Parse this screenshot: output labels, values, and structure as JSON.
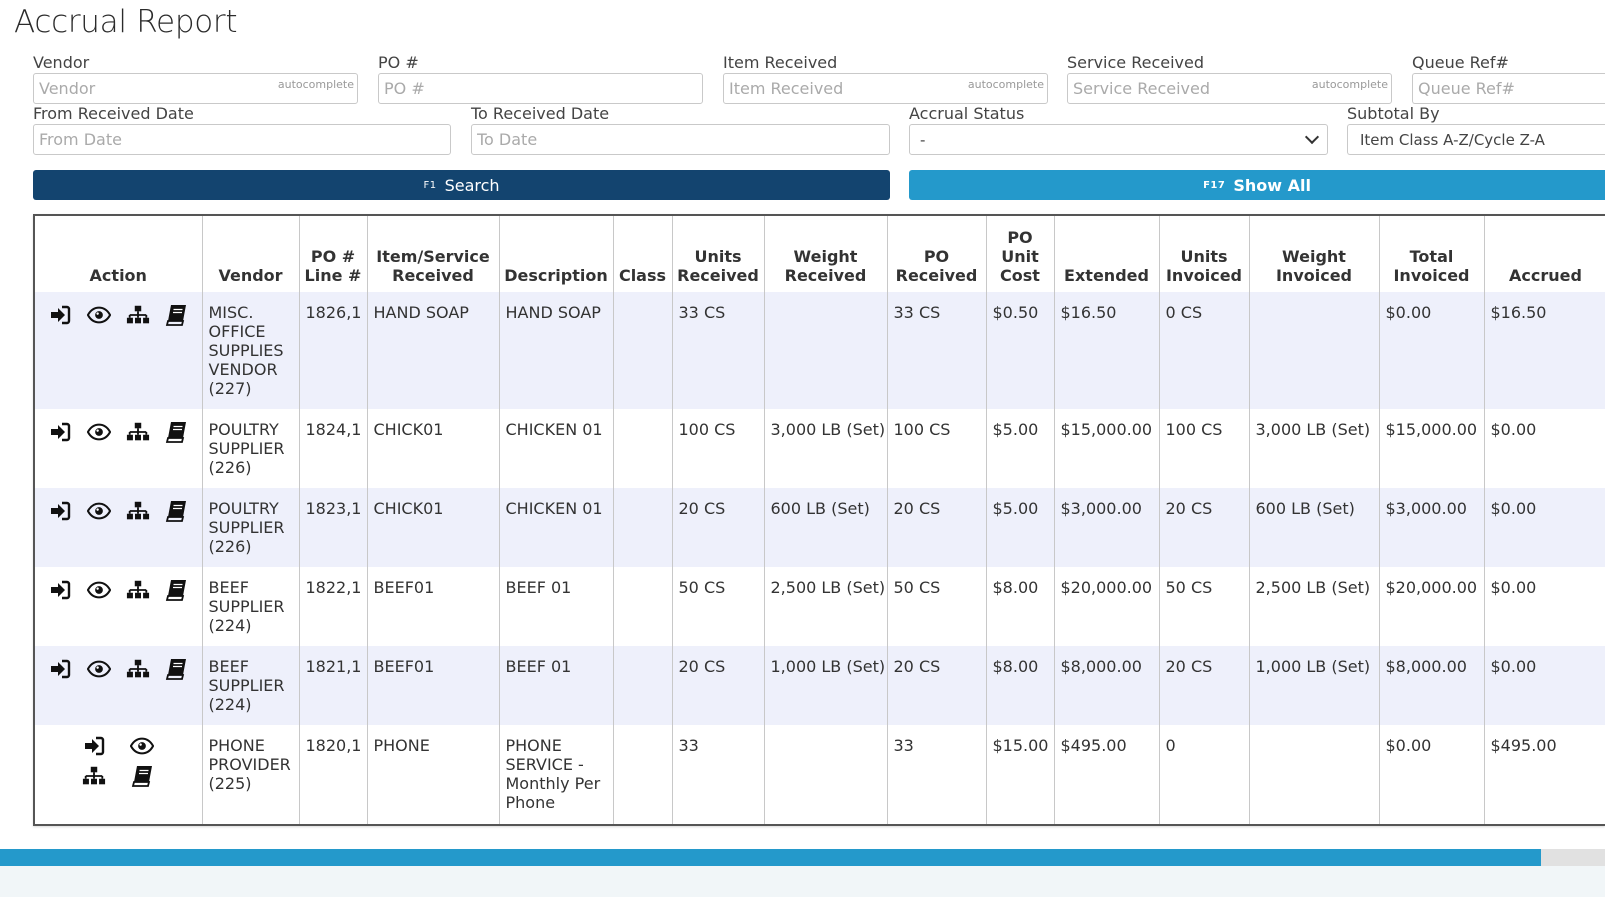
{
  "page": {
    "title": "Accrual Report"
  },
  "filters": {
    "vendor": {
      "label": "Vendor",
      "placeholder": "Vendor",
      "hint": "autocomplete"
    },
    "po": {
      "label": "PO #",
      "placeholder": "PO #"
    },
    "item": {
      "label": "Item Received",
      "placeholder": "Item Received",
      "hint": "autocomplete"
    },
    "service": {
      "label": "Service Received",
      "placeholder": "Service Received",
      "hint": "autocomplete"
    },
    "queue": {
      "label": "Queue Ref#",
      "placeholder": "Queue Ref#"
    },
    "from_date": {
      "label": "From Received Date",
      "placeholder": "From Date"
    },
    "to_date": {
      "label": "To Received Date",
      "placeholder": "To Date"
    },
    "accrual_status": {
      "label": "Accrual Status",
      "value": "-"
    },
    "subtotal_by": {
      "label": "Subtotal By",
      "value": "Item Class A-Z/Cycle Z-A"
    }
  },
  "buttons": {
    "search": {
      "key": "F1",
      "label": "Search"
    },
    "show_all": {
      "key": "F17",
      "label": "Show All"
    }
  },
  "table": {
    "columns": [
      [
        "Action"
      ],
      [
        "Vendor"
      ],
      [
        "PO #",
        "Line #"
      ],
      [
        "Item/Service",
        "Received"
      ],
      [
        "Description"
      ],
      [
        "Class"
      ],
      [
        "Units",
        "Received"
      ],
      [
        "Weight",
        "Received"
      ],
      [
        "PO",
        "Received"
      ],
      [
        "PO",
        "Unit",
        "Cost"
      ],
      [
        "Extended"
      ],
      [
        "Units",
        "Invoiced"
      ],
      [
        "Weight",
        "Invoiced"
      ],
      [
        "Total",
        "Invoiced"
      ],
      [
        "Accrued"
      ]
    ],
    "rows": [
      {
        "vendor": [
          "MISC.",
          "OFFICE",
          "SUPPLIES",
          "VENDOR",
          "(227)"
        ],
        "po_line": "1826,1",
        "item": "HAND SOAP",
        "description": [
          "HAND SOAP"
        ],
        "class": "",
        "units_received": "33 CS",
        "weight_received": "",
        "po_received": "33 CS",
        "unit_cost": "$0.50",
        "extended": "$16.50",
        "units_invoiced": "0 CS",
        "weight_invoiced": "",
        "total_invoiced": "$0.00",
        "accrued": "$16.50"
      },
      {
        "vendor": [
          "POULTRY",
          "SUPPLIER",
          "(226)"
        ],
        "po_line": "1824,1",
        "item": "CHICK01",
        "description": [
          "CHICKEN 01"
        ],
        "class": "",
        "units_received": "100 CS",
        "weight_received": "3,000 LB (Set)",
        "po_received": "100 CS",
        "unit_cost": "$5.00",
        "extended": "$15,000.00",
        "units_invoiced": "100 CS",
        "weight_invoiced": "3,000 LB (Set)",
        "total_invoiced": "$15,000.00",
        "accrued": "$0.00"
      },
      {
        "vendor": [
          "POULTRY",
          "SUPPLIER",
          "(226)"
        ],
        "po_line": "1823,1",
        "item": "CHICK01",
        "description": [
          "CHICKEN 01"
        ],
        "class": "",
        "units_received": "20 CS",
        "weight_received": "600 LB (Set)",
        "po_received": "20 CS",
        "unit_cost": "$5.00",
        "extended": "$3,000.00",
        "units_invoiced": "20 CS",
        "weight_invoiced": "600 LB (Set)",
        "total_invoiced": "$3,000.00",
        "accrued": "$0.00"
      },
      {
        "vendor": [
          "BEEF",
          "SUPPLIER",
          "(224)"
        ],
        "po_line": "1822,1",
        "item": "BEEF01",
        "description": [
          "BEEF 01"
        ],
        "class": "",
        "units_received": "50 CS",
        "weight_received": "2,500 LB (Set)",
        "po_received": "50 CS",
        "unit_cost": "$8.00",
        "extended": "$20,000.00",
        "units_invoiced": "50 CS",
        "weight_invoiced": "2,500 LB (Set)",
        "total_invoiced": "$20,000.00",
        "accrued": "$0.00"
      },
      {
        "vendor": [
          "BEEF",
          "SUPPLIER",
          "(224)"
        ],
        "po_line": "1821,1",
        "item": "BEEF01",
        "description": [
          "BEEF 01"
        ],
        "class": "",
        "units_received": "20 CS",
        "weight_received": "1,000 LB (Set)",
        "po_received": "20 CS",
        "unit_cost": "$8.00",
        "extended": "$8,000.00",
        "units_invoiced": "20 CS",
        "weight_invoiced": "1,000 LB (Set)",
        "total_invoiced": "$8,000.00",
        "accrued": "$0.00"
      },
      {
        "vendor": [
          "PHONE",
          "PROVIDER",
          "(225)"
        ],
        "po_line": "1820,1",
        "item": "PHONE",
        "description": [
          "PHONE",
          "SERVICE -",
          "Monthly Per",
          "Phone"
        ],
        "class": "",
        "units_received": "33",
        "weight_received": "",
        "po_received": "33",
        "unit_cost": "$15.00",
        "extended": "$495.00",
        "units_invoiced": "0",
        "weight_invoiced": "",
        "total_invoiced": "$0.00",
        "accrued": "$495.00"
      }
    ],
    "row_actions": [
      "sign-in-icon",
      "eye-icon",
      "sitemap-icon",
      "book-icon"
    ]
  },
  "scrollbar": {
    "position": 0.96
  },
  "colors": {
    "primary": "#13446f",
    "accent": "#2499cb",
    "row_alt": "#eef0fb"
  }
}
